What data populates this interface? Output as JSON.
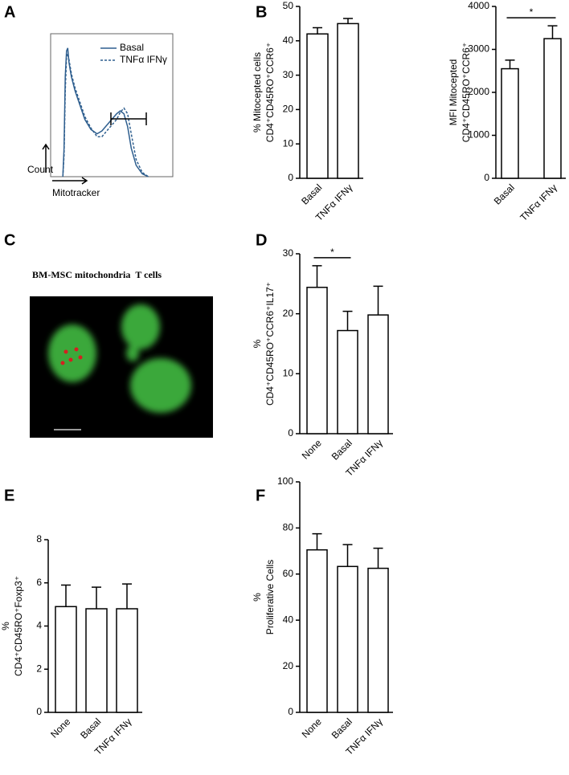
{
  "chart_data": [
    {
      "type": "line",
      "panel_label": "A",
      "xlabel": "Mitotracker",
      "ylabel": "Count",
      "x": [
        10,
        11,
        12,
        13,
        14,
        15,
        17,
        20,
        24,
        28,
        33,
        38,
        42,
        46,
        50,
        54,
        57,
        60,
        63,
        66,
        70,
        75,
        80
      ],
      "series": [
        {
          "name": "Basal",
          "color": "#2f5f8f",
          "dash": false,
          "values": [
            0,
            20,
            70,
            88,
            90,
            80,
            70,
            60,
            50,
            40,
            33,
            30,
            32,
            36,
            40,
            44,
            46,
            44,
            35,
            20,
            8,
            2,
            0
          ]
        },
        {
          "name": "TNFα IFNγ",
          "color": "#2f5f8f",
          "dash": true,
          "values": [
            0,
            15,
            60,
            84,
            86,
            82,
            72,
            62,
            52,
            42,
            34,
            28,
            28,
            32,
            36,
            40,
            45,
            48,
            44,
            30,
            12,
            3,
            0
          ]
        }
      ],
      "xlim": [
        0,
        100
      ],
      "ylim": [
        0,
        100
      ],
      "legend": "top-right"
    },
    {
      "type": "bar",
      "panel_label": "B",
      "ylabel": [
        "% Mitocepted cells",
        "CD4⁺CD45RO⁺CCR6⁺"
      ],
      "categories": [
        "Basal",
        "TNFα IFNγ"
      ],
      "values": [
        42,
        45
      ],
      "errors": [
        1.8,
        1.5
      ],
      "ylim": [
        0,
        50
      ],
      "yticks": [
        0,
        10,
        20,
        30,
        40,
        50
      ]
    },
    {
      "type": "bar",
      "ylabel": [
        "MFI Mitocepted",
        "CD4⁺CD45RO⁺CCR6⁺"
      ],
      "categories": [
        "Basal",
        "TNFα IFNγ"
      ],
      "values": [
        2550,
        3250
      ],
      "errors": [
        200,
        300
      ],
      "ylim": [
        0,
        4000
      ],
      "yticks": [
        0,
        1000,
        2000,
        3000,
        4000
      ],
      "annotations": [
        {
          "label": "*",
          "pair": [
            "Basal",
            "TNFα IFNγ"
          ]
        }
      ]
    },
    {
      "type": "image",
      "panel_label": "C",
      "caption": [
        {
          "text": "BM-MSC mitochondria",
          "color": "#d42020"
        },
        {
          "text": "T cells",
          "color": "#3aa83a"
        }
      ]
    },
    {
      "type": "bar",
      "panel_label": "D",
      "ylabel": [
        "%",
        "CD4⁺CD45RO⁺CCR6⁺IL17⁺"
      ],
      "categories": [
        "None",
        "Basal",
        "TNFα IFNγ"
      ],
      "values": [
        24.4,
        17.2,
        19.8
      ],
      "errors": [
        3.6,
        3.2,
        4.8
      ],
      "ylim": [
        0,
        30
      ],
      "yticks": [
        0,
        10,
        20,
        30
      ],
      "annotations": [
        {
          "label": "*",
          "pair": [
            "None",
            "Basal"
          ]
        }
      ]
    },
    {
      "type": "bar",
      "panel_label": "E",
      "ylabel": [
        "%",
        "CD4⁺CD45RO⁺Foxp3⁺"
      ],
      "categories": [
        "None",
        "Basal",
        "TNFα IFNγ"
      ],
      "values": [
        4.9,
        4.8,
        4.8
      ],
      "errors": [
        1.0,
        1.0,
        1.15
      ],
      "ylim": [
        0,
        8
      ],
      "yticks": [
        0,
        2,
        4,
        6,
        8
      ]
    },
    {
      "type": "bar",
      "panel_label": "F",
      "ylabel": [
        "%",
        "Proliferative Cells"
      ],
      "categories": [
        "None",
        "Basal",
        "TNFα IFNγ"
      ],
      "values": [
        70.5,
        63.3,
        62.5
      ],
      "errors": [
        7,
        9.5,
        8.7
      ],
      "ylim": [
        0,
        100
      ],
      "yticks": [
        0,
        20,
        40,
        60,
        80,
        100
      ]
    }
  ]
}
